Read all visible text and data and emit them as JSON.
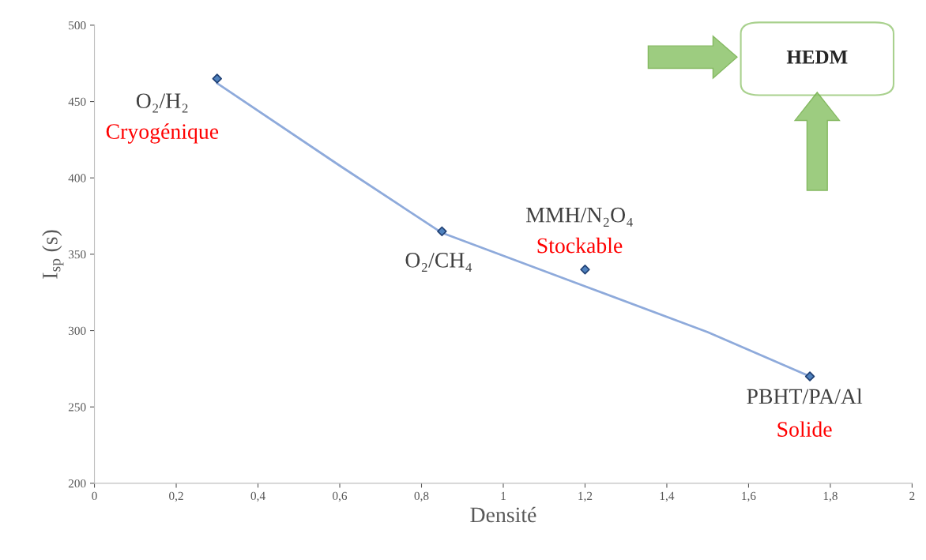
{
  "chart_data": {
    "type": "scatter",
    "xlabel": "Densité",
    "ylabel": "I$_{sp}$ (s)",
    "x": [
      0.3,
      0.85,
      1.2,
      1.75
    ],
    "series": [
      {
        "color": "#1f3f73",
        "values": [
          465,
          365,
          340,
          270
        ],
        "marker": "diamond"
      },
      {
        "type": "line",
        "color": "#8eaadb",
        "x": [
          0.3,
          0.6,
          0.85,
          1.2,
          1.5,
          1.75
        ],
        "values": [
          462,
          408,
          364,
          329,
          299,
          270
        ],
        "marker": "none",
        "line_style": "solid"
      }
    ],
    "xlim": [
      0,
      2
    ],
    "xticks": [
      0,
      {
        "value": 0.2,
        "label": "0,2"
      },
      {
        "value": 0.4,
        "label": "0,4"
      },
      {
        "value": 0.6,
        "label": "0,6"
      },
      {
        "value": 0.8,
        "label": "0,8"
      },
      1,
      {
        "value": 1.2,
        "label": "1,2"
      },
      {
        "value": 1.4,
        "label": "1,4"
      },
      {
        "value": 1.6,
        "label": "1,6"
      },
      {
        "value": 1.8,
        "label": "1,8"
      },
      2
    ],
    "ylim": [
      200,
      500
    ],
    "yticks": [
      200,
      250,
      300,
      350,
      400,
      450,
      500
    ],
    "grid": false,
    "annotations": [
      {
        "text": "O₂/H₂",
        "x": 0.3,
        "y": 465
      },
      {
        "text": "Cryogénique",
        "x": 0.3,
        "y": 465
      },
      {
        "text": "O₂/CH₄",
        "x": 0.85,
        "y": 365
      },
      {
        "text": "MMH/N₂O₄",
        "x": 1.2,
        "y": 340
      },
      {
        "text": "Stockable",
        "x": 1.2,
        "y": 340
      },
      {
        "text": "PBHT/PA/Al",
        "x": 1.75,
        "y": 270
      },
      {
        "text": "Solide",
        "x": 1.75,
        "y": 270
      },
      "HEDM"
    ]
  }
}
